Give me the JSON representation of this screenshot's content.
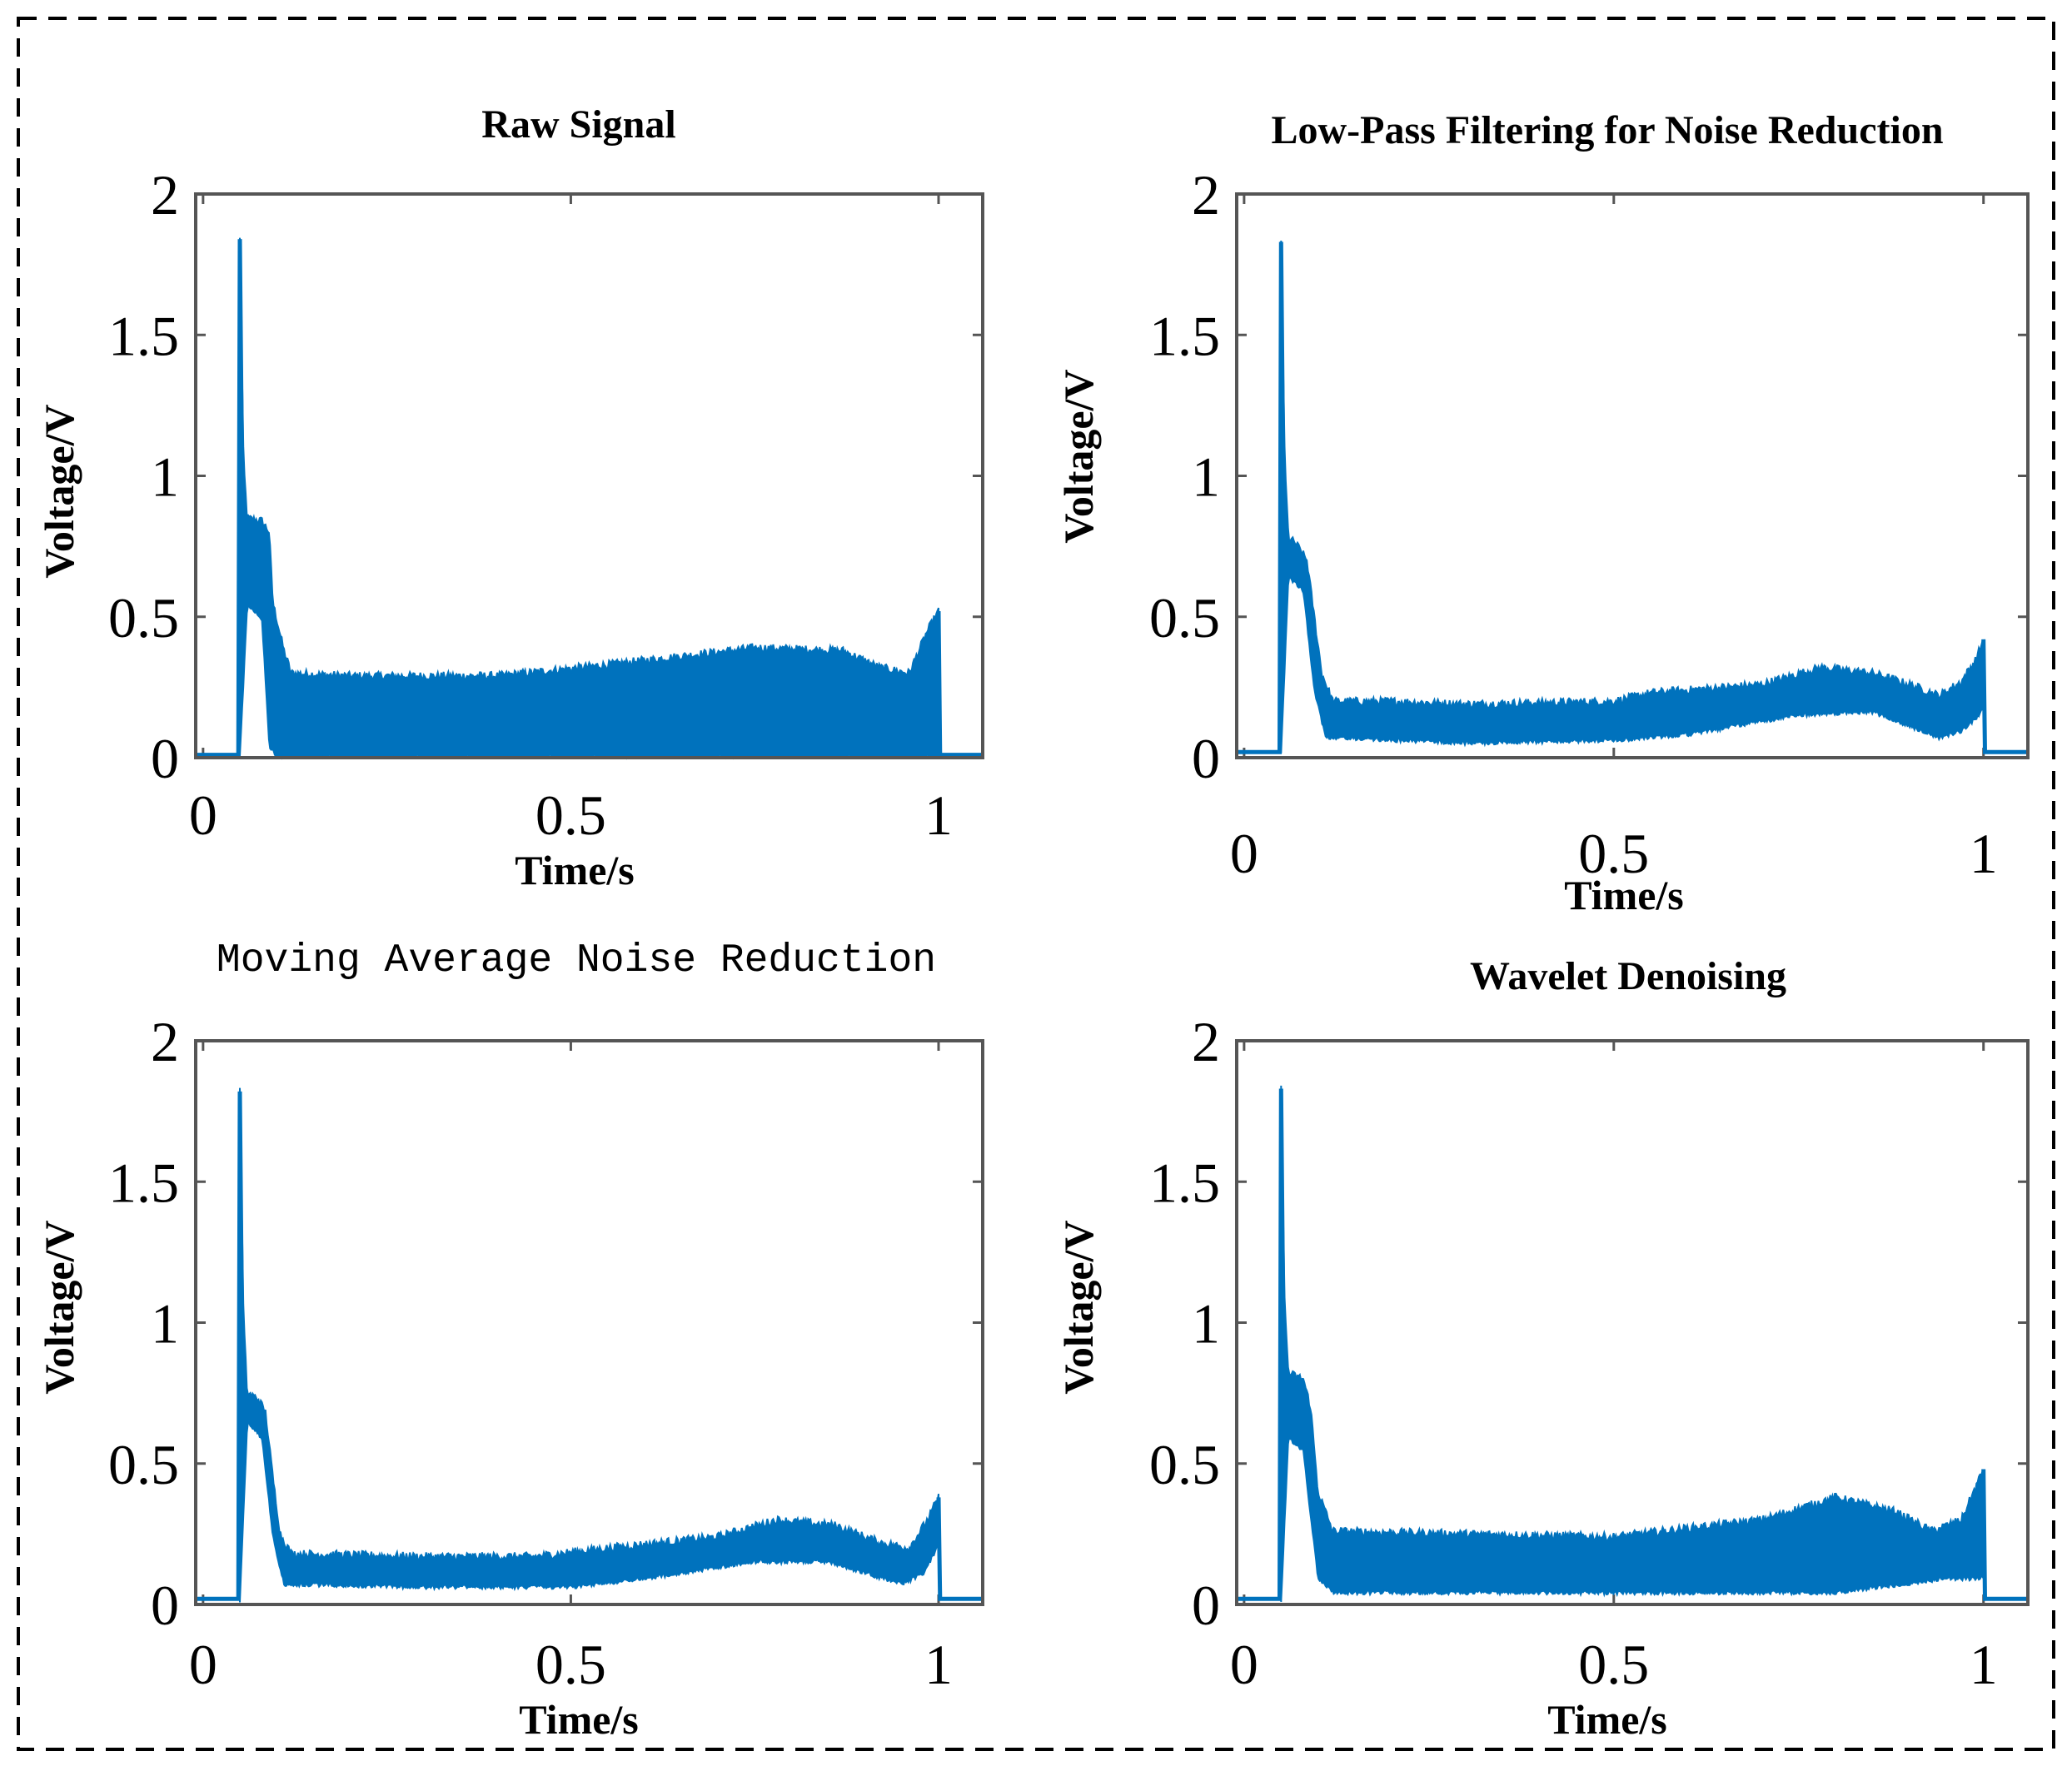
{
  "colors": {
    "signal": "#0072bd",
    "axes": "#555555",
    "frame": "#000000",
    "background": "#ffffff"
  },
  "chart_data": [
    {
      "type": "line",
      "title": "Raw Signal",
      "title_style": "serif-bold",
      "xlabel": "Time/s",
      "ylabel": "Voltage/V",
      "xlim": [
        -0.01,
        1.06
      ],
      "ylim": [
        0,
        2
      ],
      "xticks": [
        {
          "value": 0,
          "label": "0"
        },
        {
          "value": 0.5,
          "label": "0.5"
        },
        {
          "value": 1,
          "label": "1"
        }
      ],
      "yticks": [
        {
          "value": 0,
          "label": "0"
        },
        {
          "value": 0.5,
          "label": "0.5"
        },
        {
          "value": 1,
          "label": "1"
        },
        {
          "value": 1.5,
          "label": "1.5"
        },
        {
          "value": 2,
          "label": "2"
        }
      ],
      "series": [
        {
          "name": "signal",
          "onset": 0.05,
          "offset": 1.0,
          "baseline": 0.01,
          "peak": 1.84,
          "upper": [
            [
              0.05,
              1.84
            ],
            [
              0.055,
              1.05
            ],
            [
              0.06,
              0.85
            ],
            [
              0.08,
              0.84
            ],
            [
              0.09,
              0.8
            ],
            [
              0.095,
              0.55
            ],
            [
              0.11,
              0.38
            ],
            [
              0.12,
              0.3
            ],
            [
              0.2,
              0.29
            ],
            [
              0.4,
              0.29
            ],
            [
              0.55,
              0.33
            ],
            [
              0.75,
              0.39
            ],
            [
              0.87,
              0.38
            ],
            [
              0.92,
              0.32
            ],
            [
              0.96,
              0.3
            ],
            [
              0.985,
              0.45
            ],
            [
              1.0,
              0.52
            ]
          ],
          "lower": [
            [
              0.05,
              0.01
            ],
            [
              0.06,
              0.55
            ],
            [
              0.08,
              0.5
            ],
            [
              0.09,
              0.05
            ],
            [
              0.1,
              0.01
            ],
            [
              1.0,
              0.01
            ]
          ]
        }
      ]
    },
    {
      "type": "line",
      "title": "Low-Pass Filtering for Noise Reduction",
      "title_style": "serif-bold",
      "xlabel": "Time/s",
      "ylabel": "Voltage/V",
      "xlim": [
        -0.01,
        1.06
      ],
      "ylim": [
        0,
        2
      ],
      "xticks": [
        {
          "value": 0,
          "label": "0"
        },
        {
          "value": 0.5,
          "label": "0.5"
        },
        {
          "value": 1,
          "label": "1"
        }
      ],
      "yticks": [
        {
          "value": 0,
          "label": "0"
        },
        {
          "value": 0.5,
          "label": "0.5"
        },
        {
          "value": 1,
          "label": "1"
        },
        {
          "value": 1.5,
          "label": "1.5"
        },
        {
          "value": 2,
          "label": "2"
        }
      ],
      "series": [
        {
          "name": "signal",
          "onset": 0.05,
          "offset": 1.0,
          "baseline": 0.02,
          "peak": 1.83,
          "upper": [
            [
              0.05,
              1.83
            ],
            [
              0.055,
              1.05
            ],
            [
              0.06,
              0.78
            ],
            [
              0.07,
              0.76
            ],
            [
              0.085,
              0.7
            ],
            [
              0.095,
              0.5
            ],
            [
              0.105,
              0.3
            ],
            [
              0.12,
              0.2
            ],
            [
              0.2,
              0.2
            ],
            [
              0.3,
              0.19
            ],
            [
              0.5,
              0.2
            ],
            [
              0.55,
              0.23
            ],
            [
              0.7,
              0.26
            ],
            [
              0.78,
              0.32
            ],
            [
              0.85,
              0.3
            ],
            [
              0.9,
              0.26
            ],
            [
              0.94,
              0.22
            ],
            [
              0.97,
              0.27
            ],
            [
              0.99,
              0.35
            ],
            [
              1.0,
              0.42
            ]
          ],
          "lower": [
            [
              0.05,
              0.02
            ],
            [
              0.06,
              0.65
            ],
            [
              0.08,
              0.6
            ],
            [
              0.095,
              0.25
            ],
            [
              0.11,
              0.08
            ],
            [
              0.3,
              0.06
            ],
            [
              0.5,
              0.07
            ],
            [
              0.6,
              0.09
            ],
            [
              0.75,
              0.16
            ],
            [
              0.85,
              0.17
            ],
            [
              0.94,
              0.08
            ],
            [
              0.97,
              0.1
            ],
            [
              0.99,
              0.15
            ],
            [
              1.0,
              0.18
            ]
          ]
        }
      ]
    },
    {
      "type": "line",
      "title": "Moving Average Noise Reduction",
      "title_style": "mono",
      "xlabel": "Time/s",
      "ylabel": "Voltage/V",
      "xlim": [
        -0.01,
        1.06
      ],
      "ylim": [
        0,
        2
      ],
      "xticks": [
        {
          "value": 0,
          "label": "0"
        },
        {
          "value": 0.5,
          "label": "0.5"
        },
        {
          "value": 1,
          "label": "1"
        }
      ],
      "yticks": [
        {
          "value": 0,
          "label": "0"
        },
        {
          "value": 0.5,
          "label": "0.5"
        },
        {
          "value": 1,
          "label": "1"
        },
        {
          "value": 1.5,
          "label": "1.5"
        },
        {
          "value": 2,
          "label": "2"
        }
      ],
      "series": [
        {
          "name": "signal",
          "onset": 0.05,
          "offset": 1.0,
          "baseline": 0.02,
          "peak": 1.82,
          "upper": [
            [
              0.05,
              1.82
            ],
            [
              0.055,
              1.02
            ],
            [
              0.06,
              0.75
            ],
            [
              0.075,
              0.73
            ],
            [
              0.085,
              0.68
            ],
            [
              0.095,
              0.45
            ],
            [
              0.105,
              0.25
            ],
            [
              0.12,
              0.18
            ],
            [
              0.3,
              0.17
            ],
            [
              0.45,
              0.17
            ],
            [
              0.55,
              0.2
            ],
            [
              0.7,
              0.24
            ],
            [
              0.78,
              0.3
            ],
            [
              0.86,
              0.28
            ],
            [
              0.92,
              0.22
            ],
            [
              0.96,
              0.2
            ],
            [
              0.985,
              0.3
            ],
            [
              1.0,
              0.38
            ]
          ],
          "lower": [
            [
              0.05,
              0.02
            ],
            [
              0.06,
              0.65
            ],
            [
              0.08,
              0.6
            ],
            [
              0.095,
              0.25
            ],
            [
              0.11,
              0.08
            ],
            [
              0.3,
              0.07
            ],
            [
              0.5,
              0.07
            ],
            [
              0.6,
              0.1
            ],
            [
              0.75,
              0.16
            ],
            [
              0.85,
              0.16
            ],
            [
              0.95,
              0.08
            ],
            [
              0.98,
              0.12
            ],
            [
              1.0,
              0.22
            ]
          ]
        }
      ]
    },
    {
      "type": "line",
      "title": "Wavelet Denoising",
      "title_style": "serif-bold",
      "xlabel": "Time/s",
      "ylabel": "Voltage/V",
      "xlim": [
        -0.01,
        1.06
      ],
      "ylim": [
        0,
        2
      ],
      "xticks": [
        {
          "value": 0,
          "label": "0"
        },
        {
          "value": 0.5,
          "label": "0.5"
        },
        {
          "value": 1,
          "label": "1"
        }
      ],
      "yticks": [
        {
          "value": 0,
          "label": "0"
        },
        {
          "value": 0.5,
          "label": "0.5"
        },
        {
          "value": 1,
          "label": "1"
        },
        {
          "value": 1.5,
          "label": "1.5"
        },
        {
          "value": 2,
          "label": "2"
        }
      ],
      "series": [
        {
          "name": "signal",
          "onset": 0.05,
          "offset": 1.0,
          "baseline": 0.02,
          "peak": 1.83,
          "upper": [
            [
              0.05,
              1.83
            ],
            [
              0.055,
              1.05
            ],
            [
              0.06,
              0.82
            ],
            [
              0.08,
              0.8
            ],
            [
              0.09,
              0.7
            ],
            [
              0.1,
              0.4
            ],
            [
              0.12,
              0.26
            ],
            [
              0.3,
              0.25
            ],
            [
              0.5,
              0.24
            ],
            [
              0.7,
              0.3
            ],
            [
              0.8,
              0.38
            ],
            [
              0.88,
              0.33
            ],
            [
              0.93,
              0.26
            ],
            [
              0.97,
              0.3
            ],
            [
              0.99,
              0.42
            ],
            [
              1.0,
              0.48
            ]
          ],
          "lower": [
            [
              0.05,
              0.02
            ],
            [
              0.06,
              0.6
            ],
            [
              0.08,
              0.55
            ],
            [
              0.1,
              0.1
            ],
            [
              0.12,
              0.05
            ],
            [
              0.4,
              0.05
            ],
            [
              0.6,
              0.05
            ],
            [
              0.8,
              0.05
            ],
            [
              0.95,
              0.1
            ],
            [
              1.0,
              0.1
            ]
          ]
        }
      ]
    }
  ]
}
